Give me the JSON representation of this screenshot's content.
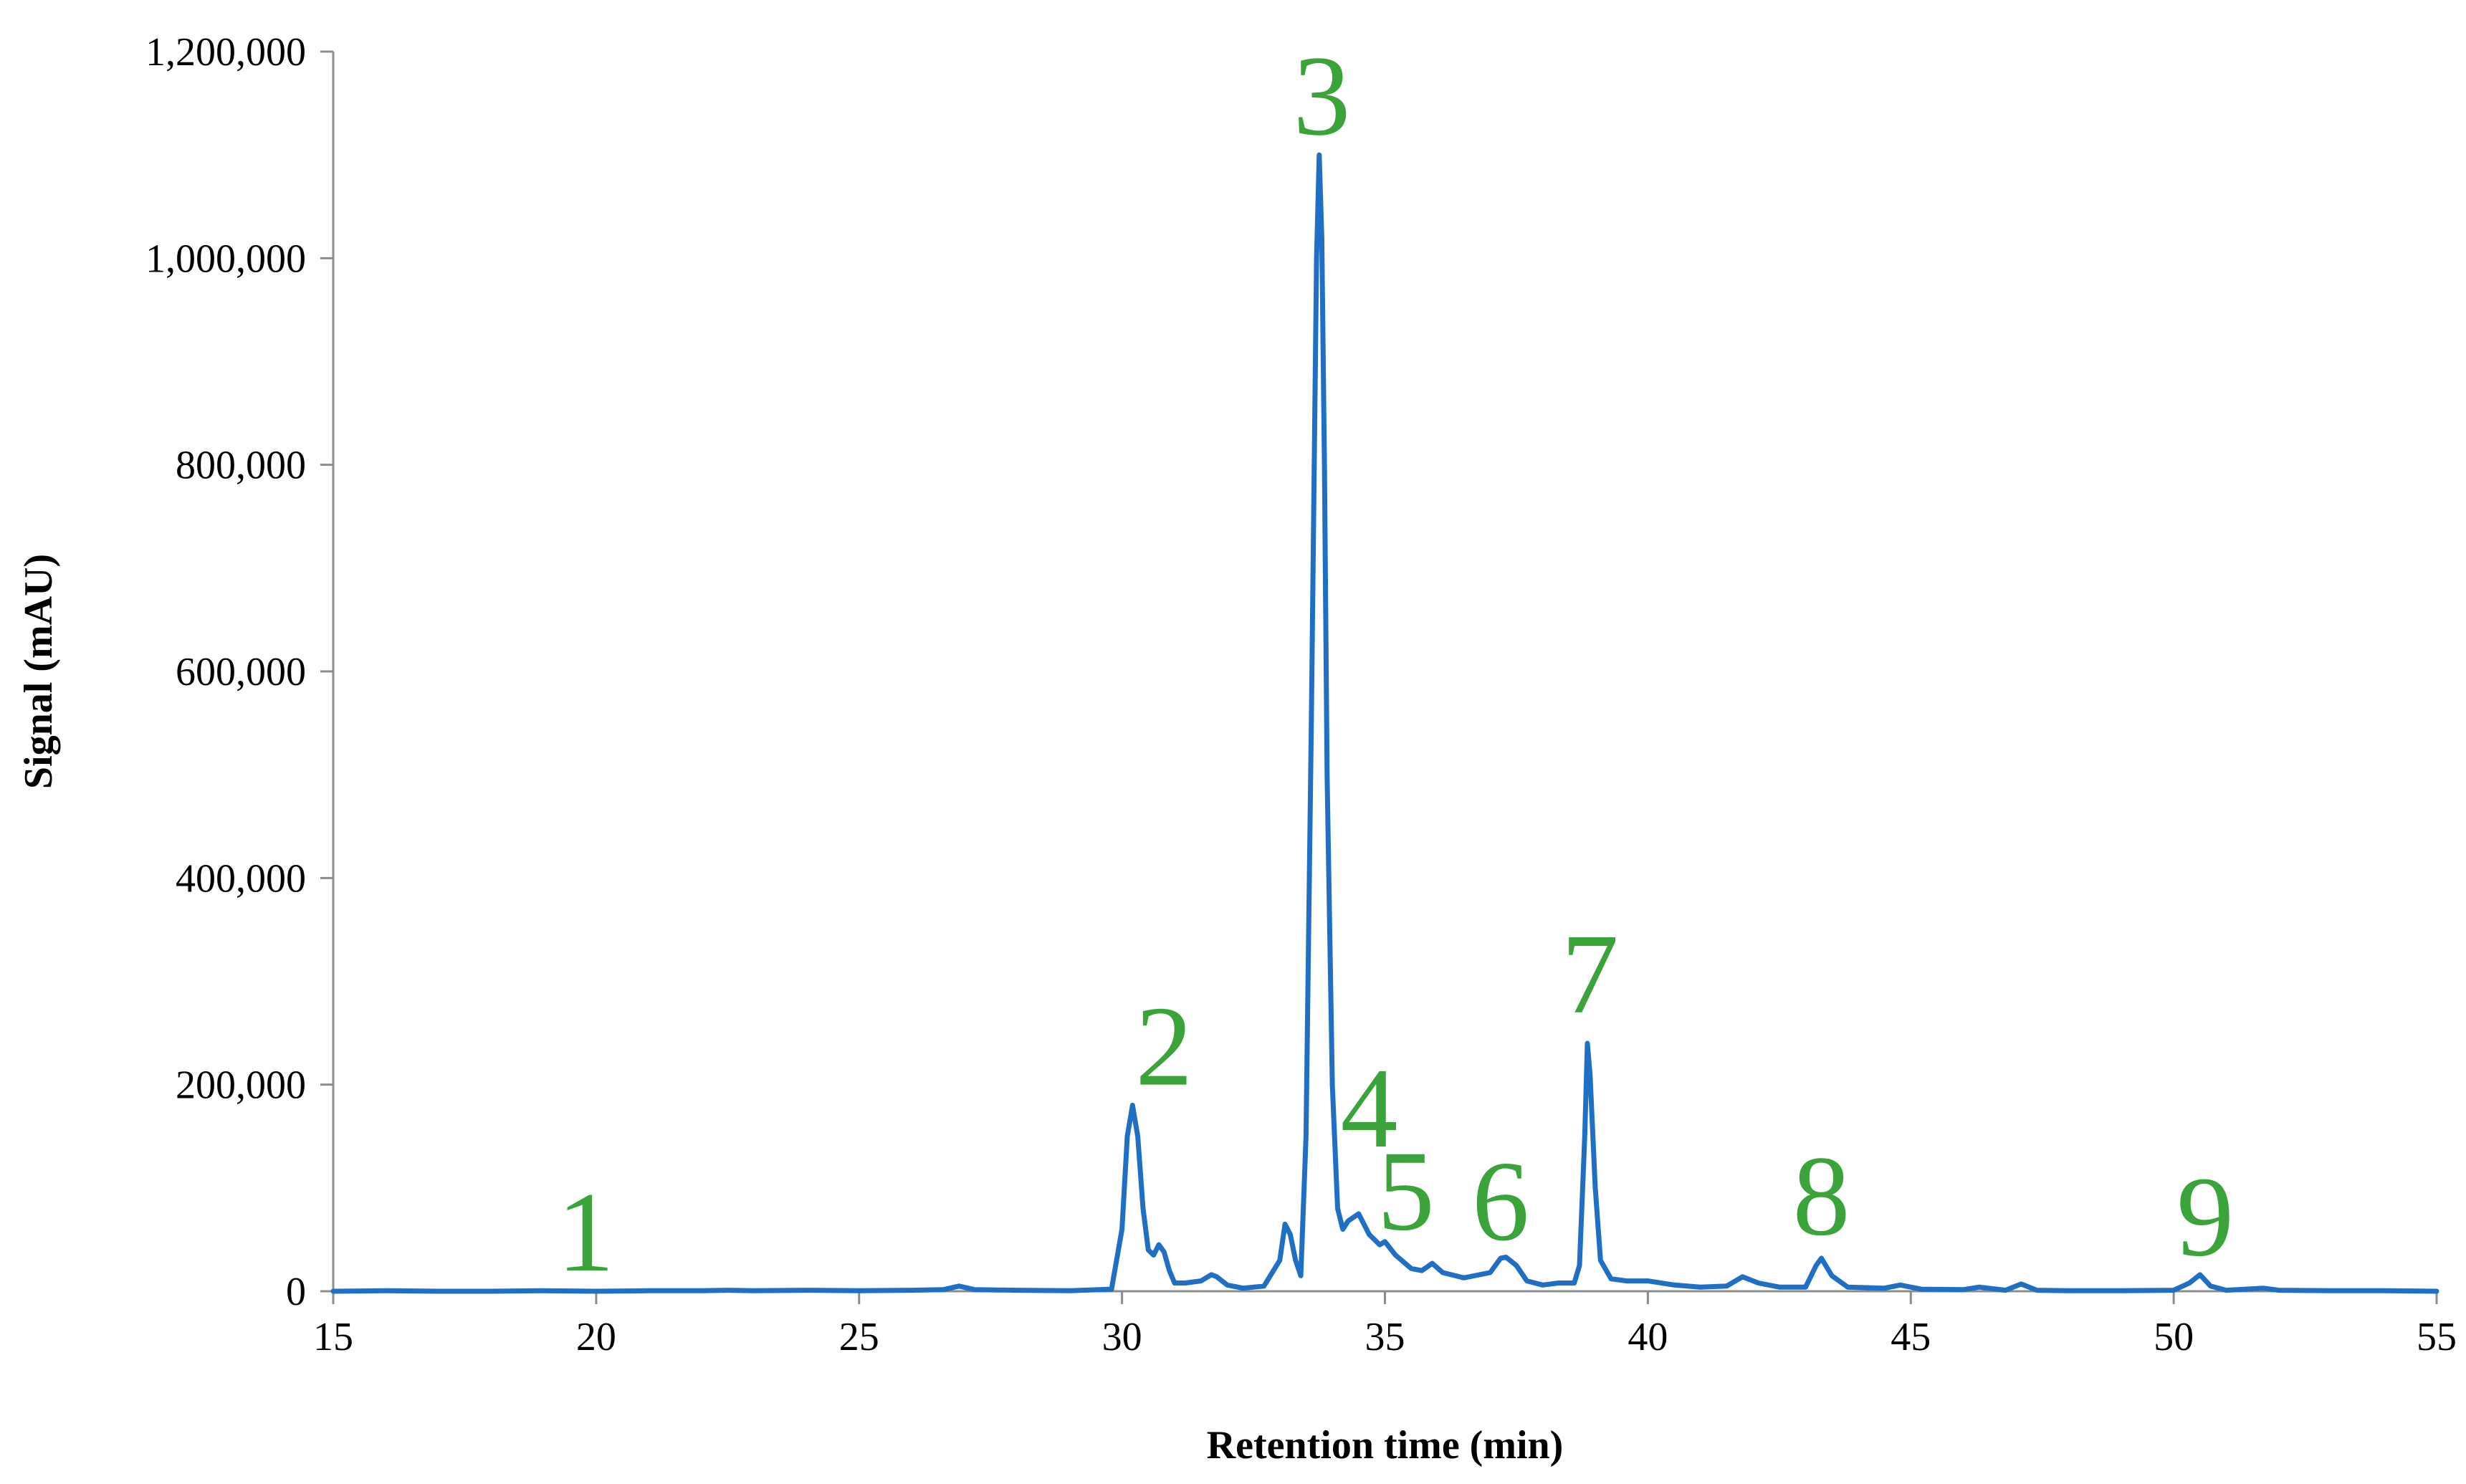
{
  "chart_data": {
    "type": "line",
    "title": "",
    "xlabel": "Retention time (min)",
    "ylabel": "Signal (mAU)",
    "xlim": [
      15,
      55
    ],
    "ylim": [
      0,
      1200000
    ],
    "x_ticks": [
      15,
      20,
      25,
      30,
      35,
      40,
      45,
      50,
      55
    ],
    "x_tick_labels": [
      "15",
      "20",
      "25",
      "30",
      "35",
      "40",
      "45",
      "50",
      "55"
    ],
    "y_ticks": [
      0,
      200000,
      400000,
      600000,
      800000,
      1000000,
      1200000
    ],
    "y_tick_labels": [
      "0",
      "200,000",
      "400,000",
      "600,000",
      "800,000",
      "1,000,000",
      "1,200,000"
    ],
    "grid": false,
    "legend": "none",
    "line_color": "#1f6fc5",
    "label_color": "#3aa33a",
    "series": [
      {
        "x": [
          15,
          16,
          17,
          18,
          19,
          20,
          21,
          22,
          22.5,
          23,
          24,
          25,
          26,
          26.6,
          26.9,
          27.2,
          28,
          29,
          29.8,
          30.0,
          30.1,
          30.2,
          30.3,
          30.4,
          30.5,
          30.6,
          30.7,
          30.8,
          30.9,
          31.0,
          31.2,
          31.5,
          31.7,
          31.8,
          32.0,
          32.3,
          32.7,
          33.0,
          33.1,
          33.2,
          33.3,
          33.4,
          33.5,
          33.6,
          33.7,
          33.75,
          33.8,
          33.85,
          33.9,
          34.0,
          34.1,
          34.2,
          34.3,
          34.5,
          34.7,
          34.9,
          35.0,
          35.2,
          35.5,
          35.7,
          35.9,
          36.1,
          36.5,
          37.0,
          37.2,
          37.3,
          37.5,
          37.7,
          38.0,
          38.3,
          38.6,
          38.7,
          38.8,
          38.85,
          38.9,
          39.0,
          39.1,
          39.3,
          39.6,
          40.0,
          40.5,
          41.0,
          41.5,
          41.8,
          42.1,
          42.5,
          43.0,
          43.2,
          43.3,
          43.5,
          43.8,
          44.5,
          44.8,
          45.2,
          46.0,
          46.3,
          46.8,
          47.1,
          47.4,
          48,
          49,
          50,
          50.3,
          50.5,
          50.7,
          51,
          51.7,
          52,
          53,
          54,
          55
        ],
        "values": [
          0,
          500,
          0,
          0,
          500,
          0,
          500,
          500,
          1000,
          500,
          1000,
          500,
          1000,
          1500,
          5000,
          1500,
          1000,
          500,
          2000,
          60000,
          150000,
          180000,
          150000,
          80000,
          40000,
          35000,
          45000,
          38000,
          20000,
          8000,
          8000,
          10000,
          16000,
          14000,
          6000,
          3000,
          5000,
          30000,
          65000,
          55000,
          30000,
          15000,
          150000,
          550000,
          1000000,
          1100000,
          1020000,
          800000,
          500000,
          200000,
          80000,
          60000,
          68000,
          75000,
          55000,
          45000,
          48000,
          35000,
          22000,
          20000,
          27000,
          18000,
          13000,
          18000,
          32000,
          33000,
          25000,
          10000,
          6000,
          8000,
          8000,
          25000,
          150000,
          240000,
          210000,
          100000,
          30000,
          12000,
          10000,
          10000,
          6000,
          4000,
          5000,
          14000,
          8000,
          4000,
          4000,
          25000,
          32000,
          15000,
          4000,
          3000,
          6000,
          2000,
          1500,
          4000,
          1000,
          7000,
          1000,
          500,
          500,
          1000,
          8000,
          16000,
          5000,
          1000,
          3000,
          1000,
          500,
          500,
          0
        ]
      }
    ],
    "peak_labels": [
      {
        "text": "1",
        "x": 19.8,
        "y": 20000
      },
      {
        "text": "2",
        "x": 30.8,
        "y": 200000
      },
      {
        "text": "3",
        "x": 33.8,
        "y": 1120000
      },
      {
        "text": "4",
        "x": 34.7,
        "y": 140000
      },
      {
        "text": "5",
        "x": 35.4,
        "y": 60000
      },
      {
        "text": "6",
        "x": 37.2,
        "y": 50000
      },
      {
        "text": "7",
        "x": 38.9,
        "y": 270000
      },
      {
        "text": "8",
        "x": 43.3,
        "y": 55000
      },
      {
        "text": "9",
        "x": 50.6,
        "y": 35000
      }
    ]
  }
}
